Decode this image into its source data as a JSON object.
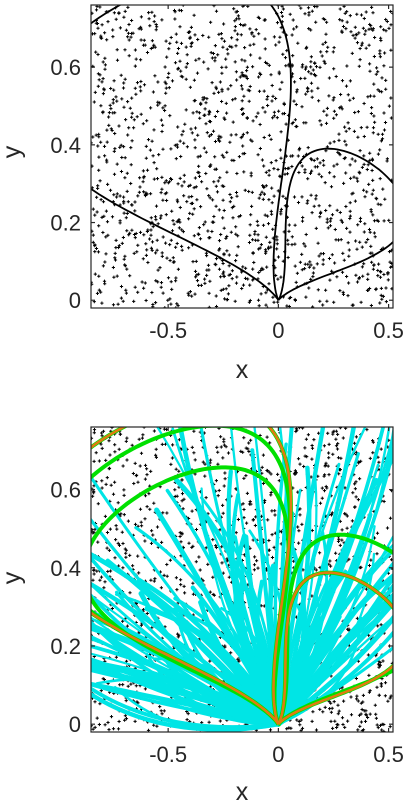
{
  "chart_data": [
    {
      "type": "scatter",
      "title": "",
      "xlabel": "x",
      "ylabel": "y",
      "xlim": [
        -0.85,
        0.52
      ],
      "ylim": [
        -0.02,
        0.76
      ],
      "xticks": [
        -0.5,
        0,
        0.5
      ],
      "yticks": [
        0,
        0.2,
        0.4,
        0.6
      ],
      "xtick_labels": [
        "-0.5",
        "0",
        "0.5"
      ],
      "ytick_labels": [
        "0",
        "0.2",
        "0.4",
        "0.6"
      ],
      "grid": false,
      "series": [
        {
          "kind": "points",
          "marker": "+",
          "count": 1500,
          "color": "#000000",
          "distribution": "uniform over axis range"
        },
        {
          "kind": "curve",
          "shape": "two-lobe closed curve through origin",
          "color": "#000000",
          "lobes": [
            {
              "apex": [
                -0.6,
                0.74
              ],
              "left_extent": -0.82
            },
            {
              "apex": [
                0.4,
                0.34
              ],
              "right_extent": 0.46
            }
          ]
        }
      ]
    },
    {
      "type": "scatter",
      "title": "",
      "xlabel": "x",
      "ylabel": "y",
      "xlim": [
        -0.85,
        0.52
      ],
      "ylim": [
        -0.02,
        0.76
      ],
      "xticks": [
        -0.5,
        0,
        0.5
      ],
      "yticks": [
        0,
        0.2,
        0.4,
        0.6
      ],
      "xtick_labels": [
        "-0.5",
        "0",
        "0.5"
      ],
      "ytick_labels": [
        "0",
        "0.2",
        "0.4",
        "0.6"
      ],
      "grid": false,
      "series": [
        {
          "kind": "points",
          "marker": "+",
          "count": 1500,
          "color": "#000000"
        },
        {
          "kind": "trajectories",
          "count": 130,
          "color": "#00e5e5"
        },
        {
          "kind": "curves",
          "count": 3,
          "color": "#00e000"
        },
        {
          "kind": "curve",
          "shape": "two-lobe closed curve through origin",
          "color": "#e07b10"
        }
      ]
    }
  ]
}
